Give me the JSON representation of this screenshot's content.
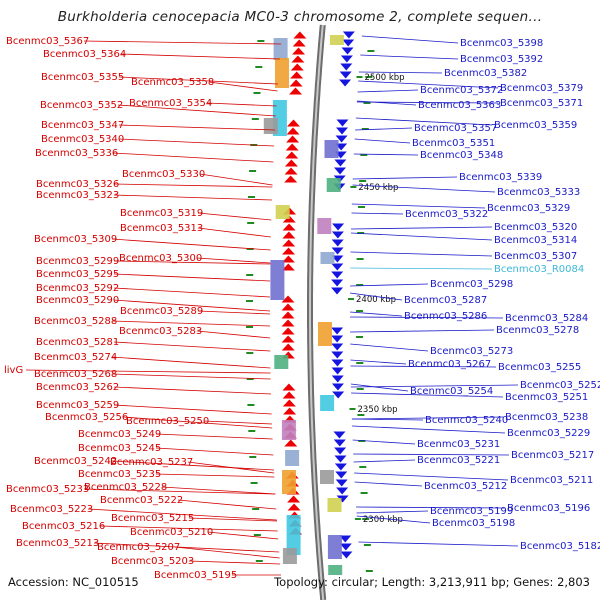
{
  "title": "Burkholderia cenocepacia MC0-3 chromosome 2, complete sequen...",
  "footer": {
    "accession": "Accession: NC_010515",
    "topology": "Topology: circular; Length: 3,213,911 bp; Genes: 2,803"
  },
  "colors": {
    "forward_label": "#d40000",
    "reverse_label": "#1a1ac8",
    "rna_label": "#3cb8d8",
    "forward_arrow": "#ee0000",
    "reverse_arrow": "#1515e0",
    "backbone": "#8a8a8a",
    "tick": "#1f8a1f"
  },
  "scale_marks": [
    "2500 kbp",
    "2450 kbp",
    "2400 kbp",
    "2350 kbp",
    "2300 kbp"
  ],
  "left_labels": [
    "Bcenmc03_5367",
    "Bcenmc03_5364",
    "Bcenmc03_5355",
    "Bcenmc03_5358",
    "Bcenmc03_5352",
    "Bcenmc03_5354",
    "Bcenmc03_5347",
    "Bcenmc03_5340",
    "Bcenmc03_5336",
    "Bcenmc03_5330",
    "Bcenmc03_5326",
    "Bcenmc03_5323",
    "Bcenmc03_5319",
    "Bcenmc03_5313",
    "Bcenmc03_5309",
    "Bcenmc03_5299",
    "Bcenmc03_5300",
    "Bcenmc03_5295",
    "Bcenmc03_5292",
    "Bcenmc03_5290",
    "Bcenmc03_5289",
    "Bcenmc03_5288",
    "Bcenmc03_5283",
    "Bcenmc03_5281",
    "Bcenmc03_5274",
    "livG",
    "Bcenmc03_5268",
    "Bcenmc03_5262",
    "Bcenmc03_5259",
    "Bcenmc03_5256",
    "Bcenmc03_5250",
    "Bcenmc03_5249",
    "Bcenmc03_5245",
    "Bcenmc03_5242",
    "Bcenmc03_5237",
    "Bcenmc03_5235",
    "Bcenmc03_5233",
    "Bcenmc03_5228",
    "Bcenmc03_5222",
    "Bcenmc03_5223",
    "Bcenmc03_5215",
    "Bcenmc03_5216",
    "Bcenmc03_5210",
    "Bcenmc03_5213",
    "Bcenmc03_5207",
    "Bcenmc03_5203",
    "Bcenmc03_5195"
  ],
  "right_labels": [
    "Bcenmc03_5398",
    "Bcenmc03_5392",
    "Bcenmc03_5382",
    "Bcenmc03_5372",
    "Bcenmc03_5379",
    "Bcenmc03_5363",
    "Bcenmc03_5371",
    "Bcenmc03_5357",
    "Bcenmc03_5359",
    "Bcenmc03_5351",
    "Bcenmc03_5348",
    "Bcenmc03_5339",
    "Bcenmc03_5333",
    "Bcenmc03_5329",
    "Bcenmc03_5322",
    "Bcenmc03_5320",
    "Bcenmc03_5314",
    "Bcenmc03_5307",
    "Bcenmc03_R0084",
    "Bcenmc03_5298",
    "Bcenmc03_5287",
    "Bcenmc03_5286",
    "Bcenmc03_5284",
    "Bcenmc03_5278",
    "Bcenmc03_5273",
    "Bcenmc03_5267",
    "Bcenmc03_5255",
    "Bcenmc03_5252",
    "Bcenmc03_5254",
    "Bcenmc03_5251",
    "Bcenmc03_5240",
    "Bcenmc03_5238",
    "Bcenmc03_5229",
    "Bcenmc03_5231",
    "Bcenmc03_5217",
    "Bcenmc03_5221",
    "Bcenmc03_5211",
    "Bcenmc03_5212",
    "Bcenmc03_5196",
    "Bcenmc03_5199",
    "Bcenmc03_5198",
    "Bcenmc03_5182"
  ]
}
